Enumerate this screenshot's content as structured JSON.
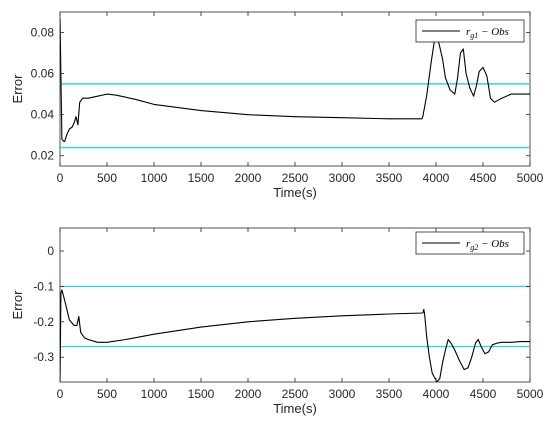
{
  "chart_data": [
    {
      "type": "line",
      "xlabel": "Time(s)",
      "ylabel": "Error",
      "xlim": [
        0,
        5000
      ],
      "ylim": [
        0.015,
        0.09
      ],
      "x_ticks": [
        0,
        500,
        1000,
        1500,
        2000,
        2500,
        3000,
        3500,
        4000,
        4500,
        5000
      ],
      "x_tick_labels": [
        "0",
        "500",
        "1000",
        "1500",
        "2000",
        "2500",
        "3000",
        "3500",
        "4000",
        "4500",
        "5000"
      ],
      "y_ticks": [
        0.02,
        0.04,
        0.06,
        0.08
      ],
      "y_tick_labels": [
        "0.02",
        "0.04",
        "0.06",
        "0.08"
      ],
      "grid": false,
      "legend": {
        "placement": "top-right",
        "label_main": "r",
        "label_sub": "g1",
        "label_rest": " − Obs"
      },
      "threshold_color": "#33d6d6",
      "series_color": "#000000",
      "thresholds": [
        0.055,
        0.024
      ],
      "series": [
        {
          "x": [
            0,
            20,
            40,
            50,
            70,
            100,
            130,
            150,
            170,
            190,
            210,
            240,
            300,
            400,
            500,
            600,
            800,
            1000,
            1500,
            2000,
            2500,
            3000,
            3500,
            3850,
            3860,
            3900,
            3950,
            3980,
            4000,
            4030,
            4070,
            4100,
            4150,
            4200,
            4230,
            4260,
            4290,
            4320,
            4360,
            4400,
            4430,
            4460,
            4500,
            4540,
            4580,
            4620,
            4700,
            4800,
            4900,
            5000
          ],
          "y": [
            0.087,
            0.028,
            0.027,
            0.027,
            0.03,
            0.033,
            0.034,
            0.036,
            0.039,
            0.035,
            0.046,
            0.048,
            0.048,
            0.049,
            0.05,
            0.0495,
            0.0475,
            0.045,
            0.042,
            0.04,
            0.039,
            0.0385,
            0.038,
            0.038,
            0.039,
            0.049,
            0.066,
            0.075,
            0.079,
            0.075,
            0.067,
            0.058,
            0.052,
            0.05,
            0.058,
            0.07,
            0.072,
            0.06,
            0.053,
            0.049,
            0.054,
            0.061,
            0.063,
            0.059,
            0.048,
            0.046,
            0.048,
            0.05,
            0.05,
            0.05
          ]
        }
      ]
    },
    {
      "type": "line",
      "xlabel": "Time(s)",
      "ylabel": "Error",
      "xlim": [
        0,
        5000
      ],
      "ylim": [
        -0.37,
        0.065
      ],
      "x_ticks": [
        0,
        500,
        1000,
        1500,
        2000,
        2500,
        3000,
        3500,
        4000,
        4500,
        5000
      ],
      "x_tick_labels": [
        "0",
        "500",
        "1000",
        "1500",
        "2000",
        "2500",
        "3000",
        "3500",
        "4000",
        "4500",
        "5000"
      ],
      "y_ticks": [
        0,
        -0.1,
        -0.2,
        -0.3
      ],
      "y_tick_labels": [
        "0",
        "-0.1",
        "-0.2",
        "-0.3"
      ],
      "grid": false,
      "legend": {
        "placement": "top-right",
        "label_main": "r",
        "label_sub": "g2",
        "label_rest": " − Obs"
      },
      "threshold_color": "#33d6d6",
      "series_color": "#000000",
      "thresholds": [
        -0.1,
        -0.27
      ],
      "series": [
        {
          "x": [
            0,
            10,
            20,
            40,
            60,
            100,
            150,
            180,
            200,
            220,
            260,
            300,
            400,
            500,
            700,
            1000,
            1500,
            2000,
            2500,
            3000,
            3500,
            3860,
            3870,
            3880,
            3900,
            3930,
            3960,
            3990,
            4010,
            4040,
            4070,
            4100,
            4130,
            4160,
            4200,
            4250,
            4300,
            4340,
            4380,
            4420,
            4450,
            4480,
            4520,
            4560,
            4600,
            4650,
            4700,
            4800,
            4900,
            5000
          ],
          "y": [
            -0.37,
            -0.12,
            -0.11,
            -0.13,
            -0.15,
            -0.195,
            -0.21,
            -0.21,
            -0.185,
            -0.23,
            -0.245,
            -0.25,
            -0.258,
            -0.258,
            -0.25,
            -0.235,
            -0.215,
            -0.2,
            -0.19,
            -0.183,
            -0.178,
            -0.175,
            -0.165,
            -0.18,
            -0.24,
            -0.3,
            -0.345,
            -0.36,
            -0.37,
            -0.36,
            -0.315,
            -0.28,
            -0.25,
            -0.26,
            -0.28,
            -0.31,
            -0.335,
            -0.33,
            -0.3,
            -0.26,
            -0.25,
            -0.27,
            -0.29,
            -0.285,
            -0.265,
            -0.26,
            -0.258,
            -0.258,
            -0.256,
            -0.256
          ]
        }
      ]
    }
  ]
}
